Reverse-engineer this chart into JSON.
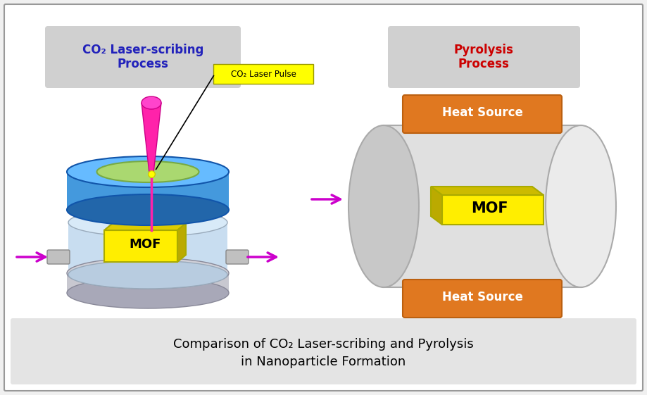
{
  "bg_color": "#f0f0f0",
  "outer_border_color": "#999999",
  "title_text_line1": "Comparison of CO₂ Laser-scribing and Pyrolysis",
  "title_text_line2": "in Nanoparticle Formation",
  "title_fontsize": 13,
  "left_label": "CO₂ Laser-scribing\nProcess",
  "left_label_color": "#2222bb",
  "right_label": "Pyrolysis\nProcess",
  "right_label_color": "#cc0000",
  "label_bg_color": "#d0d0d0",
  "laser_pulse_label": "CO₂ Laser Pulse",
  "laser_pulse_bg": "#ffff00",
  "mof_color": "#ffee00",
  "mof_edge_color": "#aaaa00",
  "mof_text_color": "#000000",
  "heat_source_color": "#e07820",
  "heat_source_text_color": "#ffffff",
  "arrow_color": "#cc00cc",
  "blue_top_color": "#44aaee",
  "blue_top_dark": "#2277cc",
  "blue_top_rim": "#3388dd",
  "green_inner": "#aad870",
  "green_inner_edge": "#77aa44",
  "laser_color": "#ff44aa",
  "laser_top_color": "#ff22aa",
  "chamber_body_color": "#c8ddf0",
  "chamber_edge_color": "#99aabb",
  "bottom_disk_color": "#b8b8c0",
  "bottom_disk_edge": "#888898",
  "pipe_color": "#c0c0c0",
  "pipe_edge_color": "#888888",
  "roll_light": "#e8e8e8",
  "roll_mid": "#d0d0d0",
  "roll_dark": "#b0b0b0",
  "roll_edge": "#aaaaaa"
}
